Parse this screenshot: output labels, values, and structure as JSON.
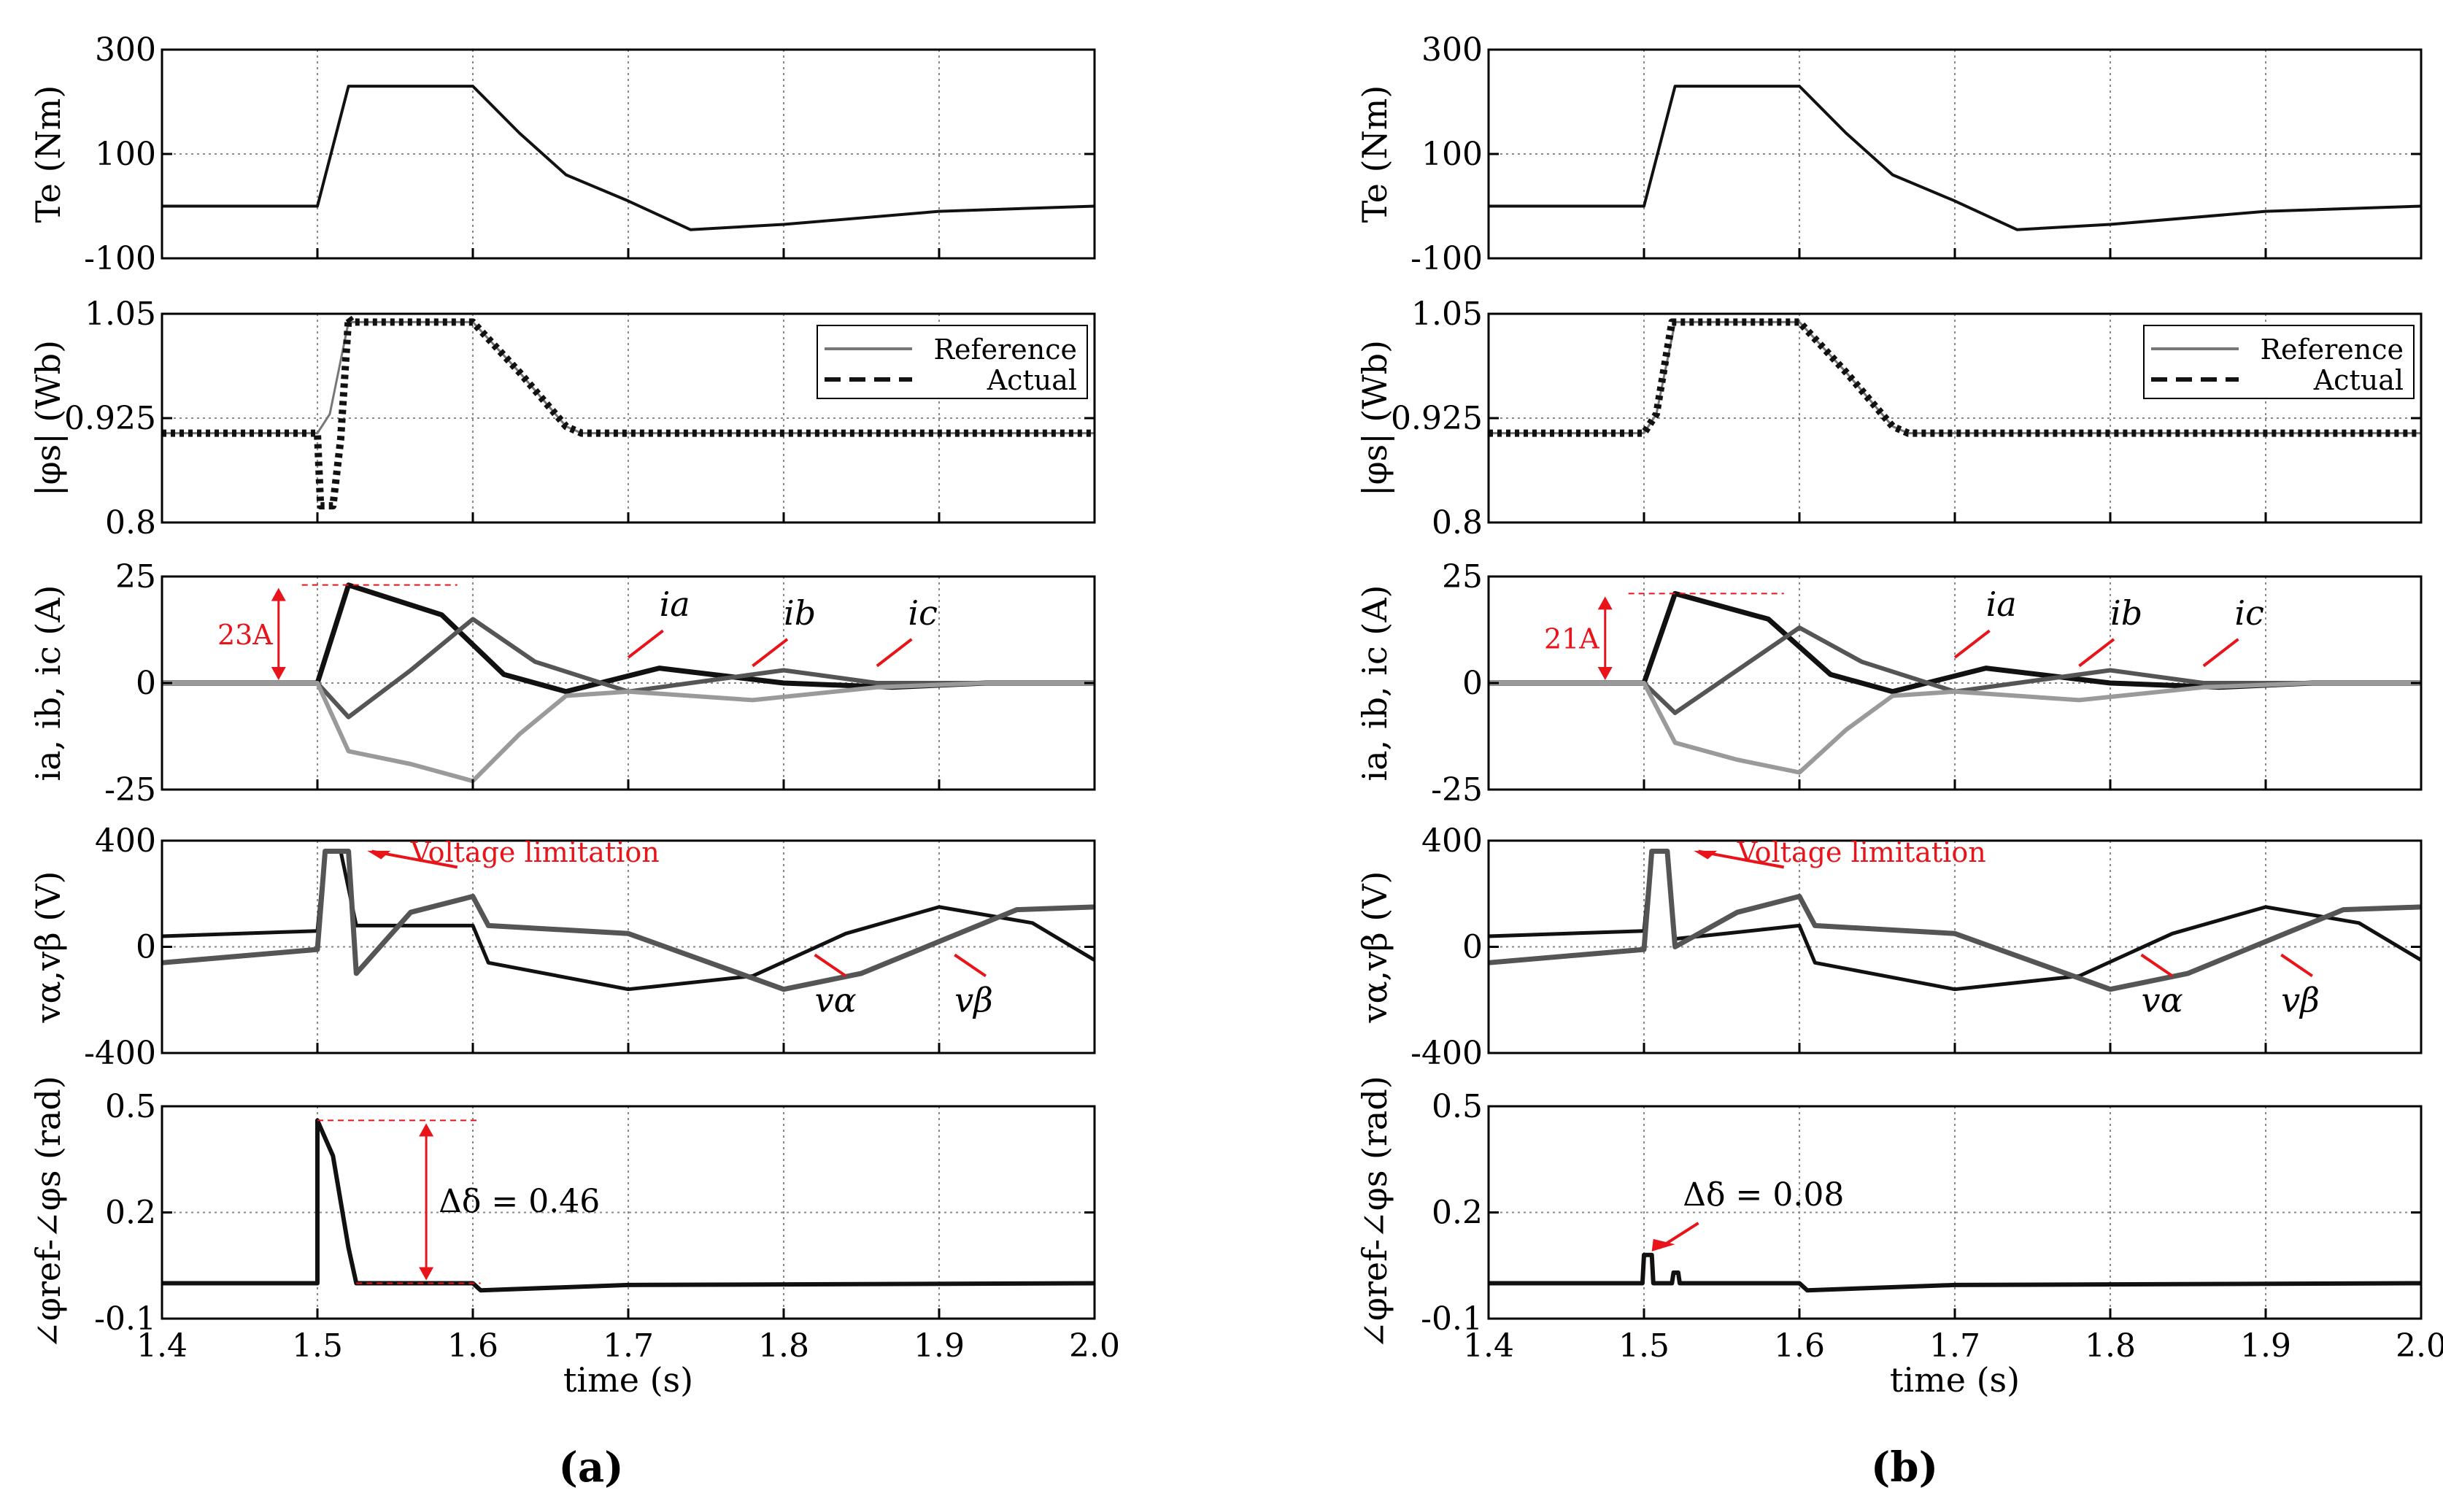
{
  "chart_data": [
    {
      "panel_label": "(a)",
      "type": "line",
      "xlabel": "time (s)",
      "x_ticks": [
        "1.4",
        "1.5",
        "1.6",
        "1.7",
        "1.8",
        "1.9",
        "2.0"
      ],
      "xlim": [
        1.4,
        2.0
      ],
      "subplots": [
        {
          "id": "te",
          "ylabel": "Te (Nm)",
          "ylim": [
            -100,
            300
          ],
          "y_ticks": [
            "300",
            "100",
            "-100"
          ],
          "series": [
            {
              "x": [
                1.4,
                1.5,
                1.52,
                1.6,
                1.63,
                1.66,
                1.7,
                1.74,
                1.8,
                1.9,
                2.0
              ],
              "y": [
                0,
                0,
                230,
                230,
                140,
                60,
                10,
                -45,
                -35,
                -10,
                0
              ]
            }
          ]
        },
        {
          "id": "flux",
          "ylabel": "|φs| (Wb)",
          "ylim": [
            0.8,
            1.05
          ],
          "y_ticks": [
            "1.05",
            "0.925",
            "0.8"
          ],
          "legend": {
            "position": "top-right",
            "entries": [
              "Reference",
              "Actual"
            ]
          },
          "series": [
            {
              "name": "Reference",
              "x": [
                1.4,
                1.5,
                1.508,
                1.52,
                1.6,
                1.63,
                1.66,
                1.67,
                2.0
              ],
              "y": [
                0.907,
                0.907,
                0.93,
                1.04,
                1.04,
                0.98,
                0.915,
                0.907,
                0.907
              ]
            },
            {
              "name": "Actual",
              "x": [
                1.4,
                1.5,
                1.502,
                1.51,
                1.515,
                1.52,
                1.522,
                1.6,
                1.63,
                1.66,
                1.67,
                2.0
              ],
              "y": [
                0.907,
                0.907,
                0.82,
                0.82,
                0.9,
                1.045,
                1.04,
                1.04,
                0.98,
                0.915,
                0.907,
                0.907
              ]
            }
          ]
        },
        {
          "id": "currents",
          "ylabel": "ia, ib, ic (A)",
          "ylim": [
            -25,
            25
          ],
          "y_ticks": [
            "25",
            "0",
            "-25"
          ],
          "annotations": [
            "23A",
            "ia",
            "ib",
            "ic"
          ],
          "series": [
            {
              "name": "ia",
              "x": [
                1.4,
                1.5,
                1.52,
                1.58,
                1.62,
                1.66,
                1.72,
                1.8,
                1.87,
                1.93,
                2.0
              ],
              "y": [
                0,
                0,
                23,
                16,
                2,
                -2,
                3.5,
                0,
                -1,
                0,
                0
              ]
            },
            {
              "name": "ib",
              "x": [
                1.4,
                1.5,
                1.52,
                1.56,
                1.6,
                1.64,
                1.7,
                1.8,
                1.86,
                1.93,
                2.0
              ],
              "y": [
                0,
                0,
                -8,
                3,
                15,
                5,
                -2,
                3,
                0,
                0,
                0
              ]
            },
            {
              "name": "ic",
              "x": [
                1.4,
                1.5,
                1.52,
                1.56,
                1.6,
                1.63,
                1.66,
                1.7,
                1.78,
                1.86,
                1.93,
                2.0
              ],
              "y": [
                0,
                0,
                -16,
                -19,
                -23,
                -12,
                -3,
                -2,
                -4,
                -1,
                0,
                0
              ]
            }
          ]
        },
        {
          "id": "voltages",
          "ylabel": "vα,vβ (V)",
          "ylim": [
            -400,
            400
          ],
          "y_ticks": [
            "400",
            "0",
            "-400"
          ],
          "annotations": [
            "Voltage limitation",
            "vα",
            "vβ"
          ],
          "series": [
            {
              "name": "vα",
              "x": [
                1.4,
                1.5,
                1.505,
                1.515,
                1.525,
                1.6,
                1.61,
                1.7,
                1.78,
                1.84,
                1.9,
                1.96,
                2.0
              ],
              "y": [
                40,
                60,
                360,
                360,
                80,
                80,
                -60,
                -160,
                -110,
                50,
                150,
                90,
                -50
              ]
            },
            {
              "name": "vβ",
              "x": [
                1.4,
                1.5,
                1.505,
                1.52,
                1.525,
                1.56,
                1.6,
                1.61,
                1.7,
                1.8,
                1.85,
                1.95,
                2.0
              ],
              "y": [
                -60,
                -10,
                360,
                360,
                -100,
                130,
                190,
                80,
                50,
                -160,
                -100,
                140,
                150
              ]
            }
          ]
        },
        {
          "id": "angle",
          "ylabel": "∠φref-∠φs (rad)",
          "ylim": [
            -0.1,
            0.5
          ],
          "y_ticks": [
            "0.5",
            "0.2",
            "-0.1"
          ],
          "annotations": [
            "Δδ = 0.46"
          ],
          "series": [
            {
              "x": [
                1.4,
                1.5,
                1.5,
                1.51,
                1.52,
                1.525,
                1.6,
                1.605,
                1.7,
                2.0
              ],
              "y": [
                0.0,
                0.0,
                0.46,
                0.36,
                0.1,
                0.0,
                0.0,
                -0.02,
                -0.005,
                0.0
              ]
            }
          ]
        }
      ]
    },
    {
      "panel_label": "(b)",
      "type": "line",
      "xlabel": "time (s)",
      "x_ticks": [
        "1.4",
        "1.5",
        "1.6",
        "1.7",
        "1.8",
        "1.9",
        "2.0"
      ],
      "xlim": [
        1.4,
        2.0
      ],
      "subplots": [
        {
          "id": "te",
          "ylabel": "Te (Nm)",
          "ylim": [
            -100,
            300
          ],
          "y_ticks": [
            "300",
            "100",
            "-100"
          ],
          "series": [
            {
              "x": [
                1.4,
                1.5,
                1.52,
                1.6,
                1.63,
                1.66,
                1.7,
                1.74,
                1.8,
                1.9,
                2.0
              ],
              "y": [
                0,
                0,
                230,
                230,
                140,
                60,
                10,
                -45,
                -35,
                -10,
                0
              ]
            }
          ]
        },
        {
          "id": "flux",
          "ylabel": "|φs| (Wb)",
          "ylim": [
            0.8,
            1.05
          ],
          "y_ticks": [
            "1.05",
            "0.925",
            "0.8"
          ],
          "legend": {
            "position": "top-right",
            "entries": [
              "Reference",
              "Actual"
            ]
          },
          "series": [
            {
              "name": "Reference",
              "x": [
                1.4,
                1.5,
                1.508,
                1.52,
                1.6,
                1.63,
                1.66,
                1.67,
                2.0
              ],
              "y": [
                0.907,
                0.907,
                0.93,
                1.04,
                1.04,
                0.98,
                0.915,
                0.907,
                0.907
              ]
            },
            {
              "name": "Actual",
              "x": [
                1.4,
                1.5,
                1.508,
                1.518,
                1.6,
                1.63,
                1.66,
                1.67,
                2.0
              ],
              "y": [
                0.907,
                0.907,
                0.93,
                1.04,
                1.04,
                0.98,
                0.915,
                0.907,
                0.907
              ]
            }
          ]
        },
        {
          "id": "currents",
          "ylabel": "ia, ib, ic (A)",
          "ylim": [
            -25,
            25
          ],
          "y_ticks": [
            "25",
            "0",
            "-25"
          ],
          "annotations": [
            "21A",
            "ia",
            "ib",
            "ic"
          ],
          "series": [
            {
              "name": "ia",
              "x": [
                1.4,
                1.5,
                1.52,
                1.58,
                1.62,
                1.66,
                1.72,
                1.8,
                1.87,
                1.93,
                2.0
              ],
              "y": [
                0,
                0,
                21,
                15,
                2,
                -2,
                3.5,
                0,
                -1,
                0,
                0
              ]
            },
            {
              "name": "ib",
              "x": [
                1.4,
                1.5,
                1.52,
                1.56,
                1.6,
                1.64,
                1.7,
                1.8,
                1.86,
                1.93,
                2.0
              ],
              "y": [
                0,
                0,
                -7,
                3,
                13,
                5,
                -2,
                3,
                0,
                0,
                0
              ]
            },
            {
              "name": "ic",
              "x": [
                1.4,
                1.5,
                1.52,
                1.56,
                1.6,
                1.63,
                1.66,
                1.7,
                1.78,
                1.86,
                1.93,
                2.0
              ],
              "y": [
                0,
                0,
                -14,
                -18,
                -21,
                -11,
                -3,
                -2,
                -4,
                -1,
                0,
                0
              ]
            }
          ]
        },
        {
          "id": "voltages",
          "ylabel": "vα,vβ (V)",
          "ylim": [
            -400,
            400
          ],
          "y_ticks": [
            "400",
            "0",
            "-400"
          ],
          "annotations": [
            "Voltage limitation",
            "vα",
            "vβ"
          ],
          "series": [
            {
              "name": "vα",
              "x": [
                1.4,
                1.5,
                1.505,
                1.515,
                1.52,
                1.6,
                1.61,
                1.7,
                1.78,
                1.84,
                1.9,
                1.96,
                2.0
              ],
              "y": [
                40,
                60,
                360,
                360,
                30,
                80,
                -60,
                -160,
                -110,
                50,
                150,
                90,
                -50
              ]
            },
            {
              "name": "vβ",
              "x": [
                1.4,
                1.5,
                1.505,
                1.515,
                1.52,
                1.56,
                1.6,
                1.61,
                1.7,
                1.8,
                1.85,
                1.95,
                2.0
              ],
              "y": [
                -60,
                -10,
                360,
                360,
                0,
                130,
                190,
                80,
                50,
                -160,
                -100,
                140,
                150
              ]
            }
          ]
        },
        {
          "id": "angle",
          "ylabel": "∠φref-∠φs (rad)",
          "ylim": [
            -0.1,
            0.5
          ],
          "y_ticks": [
            "0.5",
            "0.2",
            "-0.1"
          ],
          "annotations": [
            "Δδ = 0.08"
          ],
          "series": [
            {
              "x": [
                1.4,
                1.499,
                1.5,
                1.505,
                1.506,
                1.518,
                1.519,
                1.522,
                1.523,
                1.6,
                1.605,
                1.7,
                2.0
              ],
              "y": [
                0.0,
                0.0,
                0.08,
                0.08,
                0.0,
                0.0,
                0.03,
                0.03,
                0.0,
                0.0,
                -0.02,
                -0.005,
                0.0
              ]
            }
          ]
        }
      ]
    }
  ]
}
